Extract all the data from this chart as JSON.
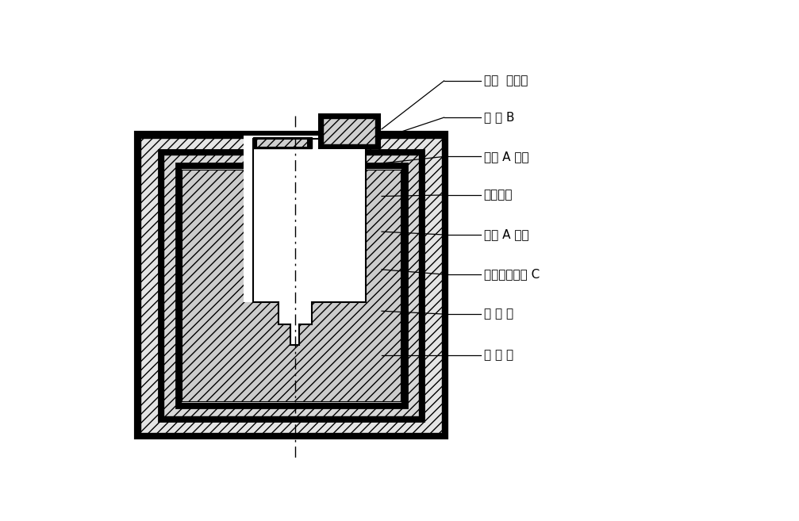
{
  "labels": [
    "刚玉  绵缘圈",
    "材 料 B",
    "材料 A 涂层",
    "鐵保护壳",
    "材料 A 涂层",
    "耐火泥或材料 C",
    "保 温 砖",
    "炉 外 壳"
  ],
  "bg_color": "#ffffff"
}
